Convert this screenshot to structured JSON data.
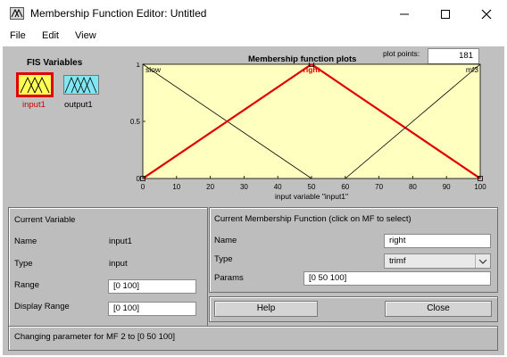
{
  "window": {
    "title": "Membership Function Editor: Untitled"
  },
  "menu": [
    "File",
    "Edit",
    "View"
  ],
  "fis": {
    "label": "FIS Variables",
    "input_label": "input1",
    "output_label": "output1"
  },
  "plot": {
    "title": "Membership function plots",
    "points_label": "plot points:",
    "points_value": "181",
    "xlabel": "input variable \"input1\"",
    "mf_names": [
      "slow",
      "right",
      "mf3"
    ]
  },
  "chart_data": {
    "type": "line",
    "title": "Membership function plots",
    "xlabel": "input variable \"input1\"",
    "ylabel": "",
    "xlim": [
      0,
      100
    ],
    "ylim": [
      0,
      1
    ],
    "xticks": [
      0,
      10,
      20,
      30,
      40,
      50,
      60,
      70,
      80,
      90,
      100
    ],
    "yticks": [
      0,
      0.5,
      1
    ],
    "ytick_labels": [
      "0",
      "0.5",
      "1"
    ],
    "series": [
      {
        "name": "slow",
        "color": "#000000",
        "selected": false,
        "x": [
          -40,
          0,
          50
        ],
        "y": [
          0,
          1,
          0
        ]
      },
      {
        "name": "right",
        "color": "#e00000",
        "selected": true,
        "x": [
          0,
          50,
          100
        ],
        "y": [
          0,
          1,
          0
        ]
      },
      {
        "name": "mf3",
        "color": "#000000",
        "selected": false,
        "x": [
          60,
          100,
          140
        ],
        "y": [
          0,
          1,
          0
        ]
      }
    ]
  },
  "current_variable": {
    "header": "Current Variable",
    "name_label": "Name",
    "name_value": "input1",
    "type_label": "Type",
    "type_value": "input",
    "range_label": "Range",
    "range_value": "[0 100]",
    "display_range_label": "Display Range",
    "display_range_value": "[0 100]"
  },
  "current_mf": {
    "header": "Current Membership Function (click on MF to select)",
    "name_label": "Name",
    "name_value": "right",
    "type_label": "Type",
    "type_value": "trimf",
    "params_label": "Params",
    "params_value": "[0 50 100]"
  },
  "buttons": {
    "help": "Help",
    "close": "Close"
  },
  "status": "Changing parameter for MF 2 to  [0 50 100]",
  "colors": {
    "plot_bg": "#ffffc0",
    "selected": "#e00000",
    "accent": "#cc0000"
  }
}
